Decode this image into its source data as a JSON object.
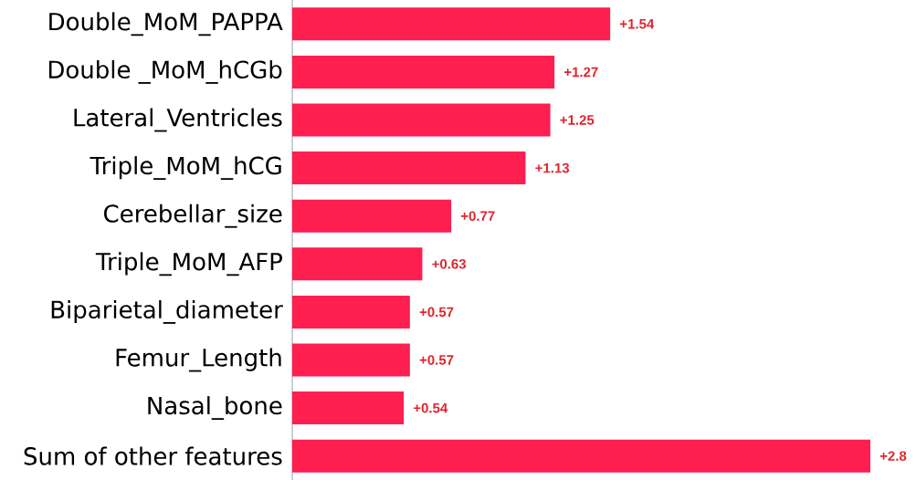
{
  "chart_data": {
    "type": "bar",
    "orientation": "horizontal",
    "categories": [
      "Double_MoM_PAPPA",
      "Double _MoM_hCGb",
      "Lateral_Ventricles",
      "Triple_MoM_hCG",
      "Cerebellar_size",
      "Triple_MoM_AFP",
      "Biparietal_diameter",
      "Femur_Length",
      "Nasal_bone",
      "Sum of other features"
    ],
    "values": [
      1.54,
      1.27,
      1.25,
      1.13,
      0.77,
      0.63,
      0.57,
      0.57,
      0.54,
      2.8
    ],
    "value_labels": [
      "+1.54",
      "+1.27",
      "+1.25",
      "+1.13",
      "+0.77",
      "+0.63",
      "+0.57",
      "+0.57",
      "+0.54",
      "+2.8"
    ],
    "color": "#fe1e50"
  }
}
